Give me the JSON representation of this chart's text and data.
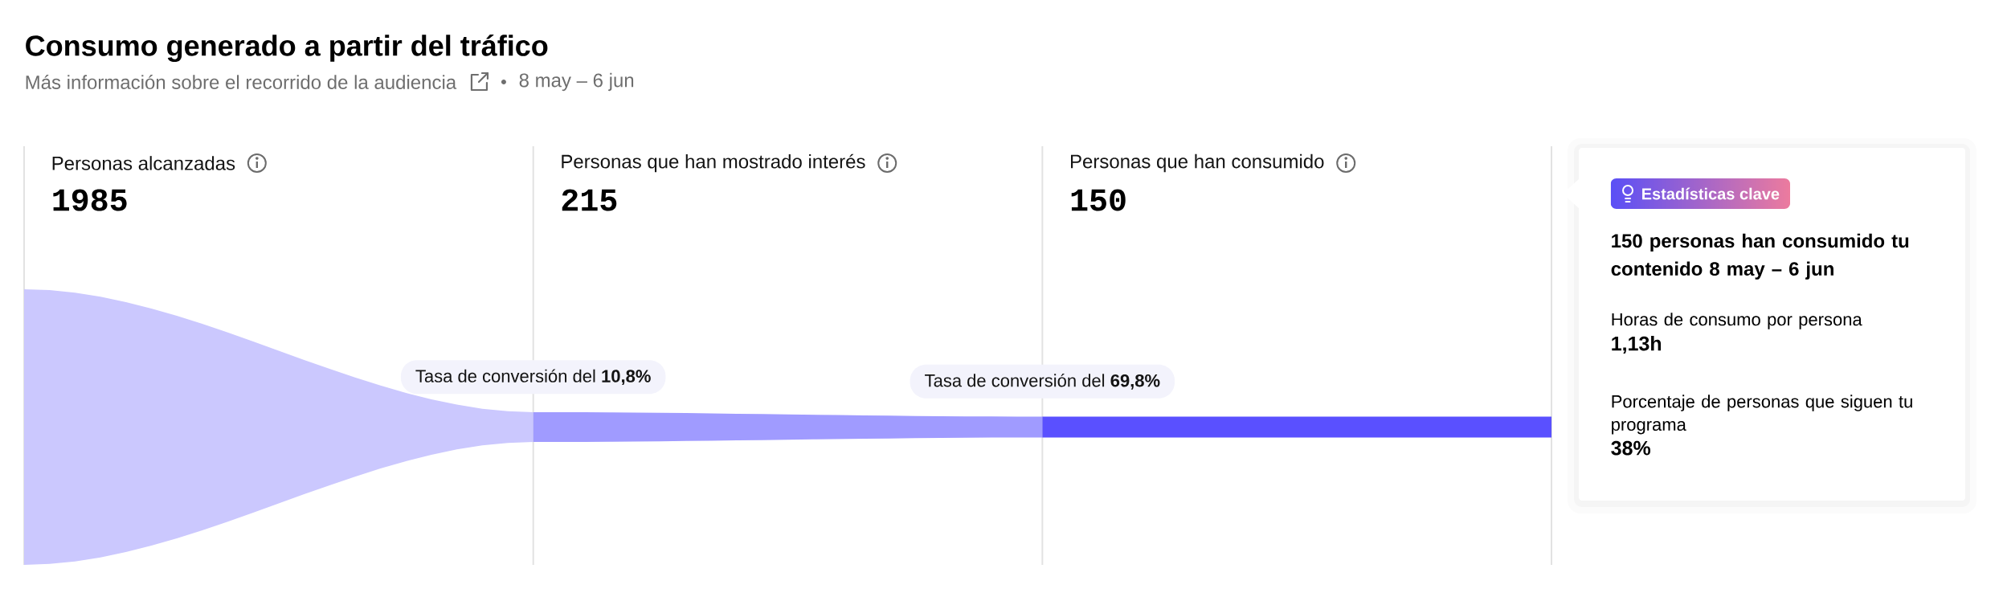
{
  "chart_data": [
    {
      "type": "other",
      "title": "Consumo generado a partir del tráfico",
      "subtitle": "Más información sobre el recorrido de la audiencia",
      "categories": [
        "Personas alcanzadas",
        "Personas que han mostrado interés",
        "Personas que han consumido"
      ],
      "values": [
        1985,
        215,
        150
      ],
      "data_labels": true,
      "colors": [
        "#cbc8fe",
        "#a09bff",
        "#5a50ff"
      ],
      "annotations": [
        "8 may – 6 jun",
        "Tasa de conversión del **10,8%**",
        "Tasa de conversión del **69,8%**"
      ]
    },
    {
      "type": "other",
      "title": "Estadísticas clave",
      "subtitle": "150 personas han consumido tu contenido 8 may – 6 jun",
      "annotations": [
        "Horas de consumo por persona",
        "1,13h",
        "Porcentaje de personas que siguen tu programa",
        "38%"
      ]
    }
  ]
}
